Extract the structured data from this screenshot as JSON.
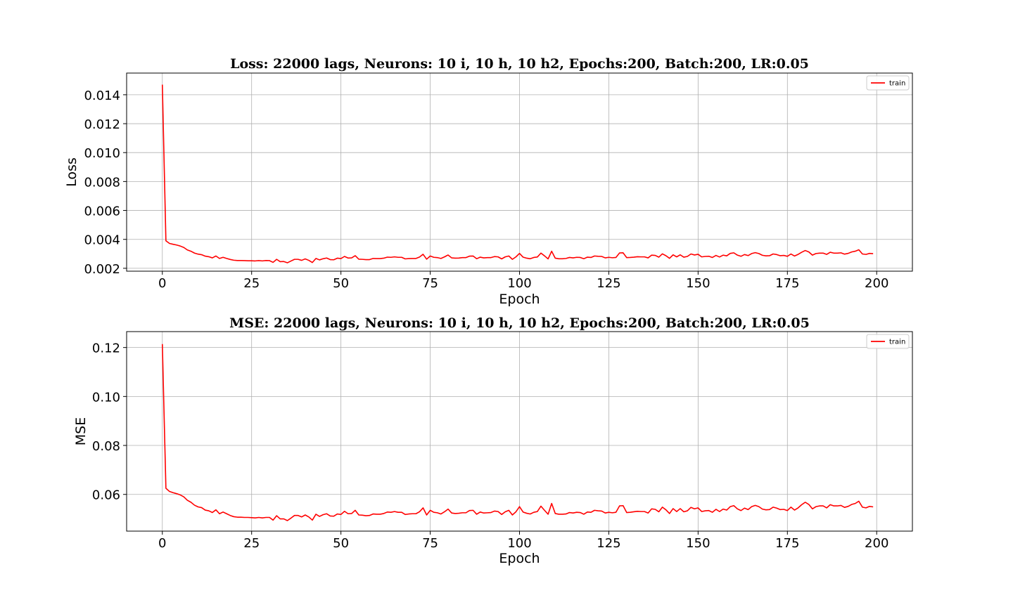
{
  "chart_data": [
    {
      "type": "line",
      "title": "Loss: 22000 lags, Neurons: 10 i, 10 h, 10 h2, Epochs:200, Batch:200, LR:0.05",
      "xlabel": "Epoch",
      "ylabel": "Loss",
      "xlim": [
        -10,
        210
      ],
      "ylim": [
        0.0018,
        0.0155
      ],
      "xticks": [
        0,
        25,
        50,
        75,
        100,
        125,
        150,
        175,
        200
      ],
      "yticks": [
        0.002,
        0.004,
        0.006,
        0.008,
        0.01,
        0.012,
        0.014
      ],
      "ytick_labels": [
        "0.002",
        "0.004",
        "0.006",
        "0.008",
        "0.010",
        "0.012",
        "0.014"
      ],
      "grid": true,
      "legend_position": "top-right",
      "series": [
        {
          "name": "train",
          "color": "#ff0000",
          "x": [
            0,
            1,
            2,
            3,
            4,
            5,
            6,
            7,
            8,
            9,
            10,
            11,
            12,
            13,
            14,
            15,
            16,
            17,
            18,
            19,
            20,
            21,
            22,
            23,
            24,
            25,
            26,
            27,
            28,
            29,
            30,
            31,
            32,
            33,
            34,
            35,
            36,
            37,
            38,
            39,
            40,
            41,
            42,
            43,
            44,
            45,
            46,
            47,
            48,
            49,
            50,
            51,
            52,
            53,
            54,
            55,
            56,
            57,
            58,
            59,
            60,
            61,
            62,
            63,
            64,
            65,
            66,
            67,
            68,
            69,
            70,
            71,
            72,
            73,
            74,
            75,
            76,
            77,
            78,
            79,
            80,
            81,
            82,
            83,
            84,
            85,
            86,
            87,
            88,
            89,
            90,
            91,
            92,
            93,
            94,
            95,
            96,
            97,
            98,
            99,
            100,
            101,
            102,
            103,
            104,
            105,
            106,
            107,
            108,
            109,
            110,
            111,
            112,
            113,
            114,
            115,
            116,
            117,
            118,
            119,
            120,
            121,
            122,
            123,
            124,
            125,
            126,
            127,
            128,
            129,
            130,
            131,
            132,
            133,
            134,
            135,
            136,
            137,
            138,
            139,
            140,
            141,
            142,
            143,
            144,
            145,
            146,
            147,
            148,
            149,
            150,
            151,
            152,
            153,
            154,
            155,
            156,
            157,
            158,
            159,
            160,
            161,
            162,
            163,
            164,
            165,
            166,
            167,
            168,
            169,
            170,
            171,
            172,
            173,
            174,
            175,
            176,
            177,
            178,
            179,
            180,
            181,
            182,
            183,
            184,
            185,
            186,
            187,
            188,
            189,
            190,
            191,
            192,
            193,
            194,
            195,
            196,
            197,
            198,
            199
          ],
          "values": [
            0.0147,
            0.0039,
            0.00372,
            0.00366,
            0.00361,
            0.00354,
            0.00344,
            0.00327,
            0.00318,
            0.00305,
            0.00298,
            0.00294,
            0.00284,
            0.0028,
            0.00272,
            0.00285,
            0.00268,
            0.00276,
            0.00268,
            0.00261,
            0.00256,
            0.00254,
            0.00254,
            0.00253,
            0.00252,
            0.00252,
            0.00251,
            0.00253,
            0.00251,
            0.00254,
            0.00253,
            0.00241,
            0.00262,
            0.00246,
            0.00247,
            0.00238,
            0.0025,
            0.00262,
            0.00262,
            0.00255,
            0.00265,
            0.00255,
            0.0024,
            0.00268,
            0.00258,
            0.00266,
            0.00271,
            0.0026,
            0.00259,
            0.0027,
            0.00267,
            0.00282,
            0.00271,
            0.00272,
            0.00287,
            0.00263,
            0.00262,
            0.0026,
            0.0026,
            0.00268,
            0.00267,
            0.00267,
            0.0027,
            0.00277,
            0.00276,
            0.00279,
            0.00276,
            0.00276,
            0.00265,
            0.00267,
            0.00268,
            0.00268,
            0.00278,
            0.00297,
            0.00263,
            0.00285,
            0.00276,
            0.00274,
            0.00268,
            0.00279,
            0.00292,
            0.00272,
            0.0027,
            0.00271,
            0.00274,
            0.00274,
            0.00284,
            0.00285,
            0.00266,
            0.00277,
            0.00272,
            0.00274,
            0.00274,
            0.00281,
            0.00279,
            0.00265,
            0.00279,
            0.00285,
            0.00262,
            0.00279,
            0.00303,
            0.00277,
            0.0027,
            0.00266,
            0.00275,
            0.00278,
            0.00305,
            0.00286,
            0.00265,
            0.00318,
            0.0027,
            0.00266,
            0.00266,
            0.00268,
            0.00275,
            0.00272,
            0.00276,
            0.00275,
            0.00266,
            0.00277,
            0.00275,
            0.00285,
            0.00283,
            0.00282,
            0.00272,
            0.00276,
            0.00273,
            0.00275,
            0.00306,
            0.00307,
            0.00274,
            0.00275,
            0.00277,
            0.0028,
            0.00279,
            0.00279,
            0.00272,
            0.00291,
            0.00289,
            0.00277,
            0.003,
            0.00287,
            0.00269,
            0.00293,
            0.00279,
            0.00293,
            0.00277,
            0.00282,
            0.00299,
            0.00292,
            0.00297,
            0.00279,
            0.00282,
            0.00283,
            0.00275,
            0.00289,
            0.00278,
            0.00291,
            0.00286,
            0.00303,
            0.00307,
            0.00291,
            0.00283,
            0.00295,
            0.00288,
            0.00302,
            0.00308,
            0.00302,
            0.0029,
            0.00286,
            0.00287,
            0.00299,
            0.00295,
            0.00287,
            0.00289,
            0.00283,
            0.00299,
            0.00285,
            0.00296,
            0.00311,
            0.00323,
            0.00313,
            0.00291,
            0.00302,
            0.00305,
            0.00305,
            0.00296,
            0.00311,
            0.00305,
            0.00305,
            0.00307,
            0.00298,
            0.00303,
            0.00313,
            0.00318,
            0.00328,
            0.00299,
            0.00296,
            0.00303,
            0.00301
          ]
        }
      ]
    },
    {
      "type": "line",
      "title": "MSE: 22000 lags, Neurons: 10 i, 10 h, 10 h2, Epochs:200, Batch:200, LR:0.05",
      "xlabel": "Epoch",
      "ylabel": "MSE",
      "xlim": [
        -10,
        210
      ],
      "ylim": [
        0.045,
        0.1265
      ],
      "xticks": [
        0,
        25,
        50,
        75,
        100,
        125,
        150,
        175,
        200
      ],
      "yticks": [
        0.06,
        0.08,
        0.1,
        0.12
      ],
      "ytick_labels": [
        "0.06",
        "0.08",
        "0.10",
        "0.12"
      ],
      "grid": true,
      "legend_position": "top-right",
      "series": [
        {
          "name": "train",
          "color": "#ff0000",
          "x": [
            0,
            1,
            2,
            3,
            4,
            5,
            6,
            7,
            8,
            9,
            10,
            11,
            12,
            13,
            14,
            15,
            16,
            17,
            18,
            19,
            20,
            21,
            22,
            23,
            24,
            25,
            26,
            27,
            28,
            29,
            30,
            31,
            32,
            33,
            34,
            35,
            36,
            37,
            38,
            39,
            40,
            41,
            42,
            43,
            44,
            45,
            46,
            47,
            48,
            49,
            50,
            51,
            52,
            53,
            54,
            55,
            56,
            57,
            58,
            59,
            60,
            61,
            62,
            63,
            64,
            65,
            66,
            67,
            68,
            69,
            70,
            71,
            72,
            73,
            74,
            75,
            76,
            77,
            78,
            79,
            80,
            81,
            82,
            83,
            84,
            85,
            86,
            87,
            88,
            89,
            90,
            91,
            92,
            93,
            94,
            95,
            96,
            97,
            98,
            99,
            100,
            101,
            102,
            103,
            104,
            105,
            106,
            107,
            108,
            109,
            110,
            111,
            112,
            113,
            114,
            115,
            116,
            117,
            118,
            119,
            120,
            121,
            122,
            123,
            124,
            125,
            126,
            127,
            128,
            129,
            130,
            131,
            132,
            133,
            134,
            135,
            136,
            137,
            138,
            139,
            140,
            141,
            142,
            143,
            144,
            145,
            146,
            147,
            148,
            149,
            150,
            151,
            152,
            153,
            154,
            155,
            156,
            157,
            158,
            159,
            160,
            161,
            162,
            163,
            164,
            165,
            166,
            167,
            168,
            169,
            170,
            171,
            172,
            173,
            174,
            175,
            176,
            177,
            178,
            179,
            180,
            181,
            182,
            183,
            184,
            185,
            186,
            187,
            188,
            189,
            190,
            191,
            192,
            193,
            194,
            195,
            196,
            197,
            198,
            199
          ],
          "values": [
            0.1214,
            0.0625,
            0.0612,
            0.0607,
            0.0603,
            0.0598,
            0.059,
            0.0576,
            0.0568,
            0.0556,
            0.0549,
            0.0546,
            0.0536,
            0.0533,
            0.0526,
            0.0537,
            0.0521,
            0.0528,
            0.0521,
            0.0514,
            0.0509,
            0.0507,
            0.0507,
            0.0506,
            0.0506,
            0.0505,
            0.0504,
            0.0506,
            0.0504,
            0.0506,
            0.0506,
            0.0495,
            0.0513,
            0.05,
            0.05,
            0.0493,
            0.0503,
            0.0514,
            0.0514,
            0.0508,
            0.0516,
            0.0508,
            0.0495,
            0.0519,
            0.051,
            0.0517,
            0.0521,
            0.0512,
            0.0511,
            0.052,
            0.0518,
            0.0531,
            0.0521,
            0.0522,
            0.0535,
            0.0516,
            0.0515,
            0.0513,
            0.0514,
            0.052,
            0.0519,
            0.0519,
            0.0522,
            0.0528,
            0.0527,
            0.053,
            0.0527,
            0.0527,
            0.0518,
            0.052,
            0.0521,
            0.0521,
            0.0529,
            0.0545,
            0.0516,
            0.0535,
            0.0527,
            0.0525,
            0.052,
            0.0529,
            0.054,
            0.0524,
            0.0522,
            0.0523,
            0.0525,
            0.0525,
            0.0534,
            0.0535,
            0.0519,
            0.0528,
            0.0524,
            0.0525,
            0.0526,
            0.0532,
            0.053,
            0.0518,
            0.0529,
            0.0535,
            0.0516,
            0.0529,
            0.055,
            0.0528,
            0.0523,
            0.052,
            0.0527,
            0.053,
            0.0552,
            0.0535,
            0.0519,
            0.0563,
            0.0522,
            0.0519,
            0.0519,
            0.052,
            0.0526,
            0.0524,
            0.0527,
            0.0526,
            0.0519,
            0.0528,
            0.0527,
            0.0535,
            0.0533,
            0.0532,
            0.0524,
            0.0527,
            0.0525,
            0.0527,
            0.0553,
            0.0554,
            0.0526,
            0.0527,
            0.0529,
            0.0531,
            0.053,
            0.053,
            0.0524,
            0.0541,
            0.0539,
            0.0529,
            0.0548,
            0.0537,
            0.0522,
            0.0542,
            0.053,
            0.0542,
            0.0529,
            0.0533,
            0.0547,
            0.0541,
            0.0545,
            0.053,
            0.0533,
            0.0534,
            0.0527,
            0.0539,
            0.053,
            0.054,
            0.0536,
            0.055,
            0.0554,
            0.0541,
            0.0534,
            0.0544,
            0.0538,
            0.055,
            0.0555,
            0.055,
            0.054,
            0.0537,
            0.0538,
            0.0548,
            0.0544,
            0.0538,
            0.0539,
            0.0534,
            0.0548,
            0.0536,
            0.0545,
            0.0558,
            0.0568,
            0.0559,
            0.0541,
            0.055,
            0.0553,
            0.0553,
            0.0545,
            0.0558,
            0.0553,
            0.0553,
            0.0555,
            0.0547,
            0.0551,
            0.0559,
            0.0563,
            0.0572,
            0.0548,
            0.0545,
            0.0551,
            0.0549
          ]
        }
      ]
    }
  ]
}
